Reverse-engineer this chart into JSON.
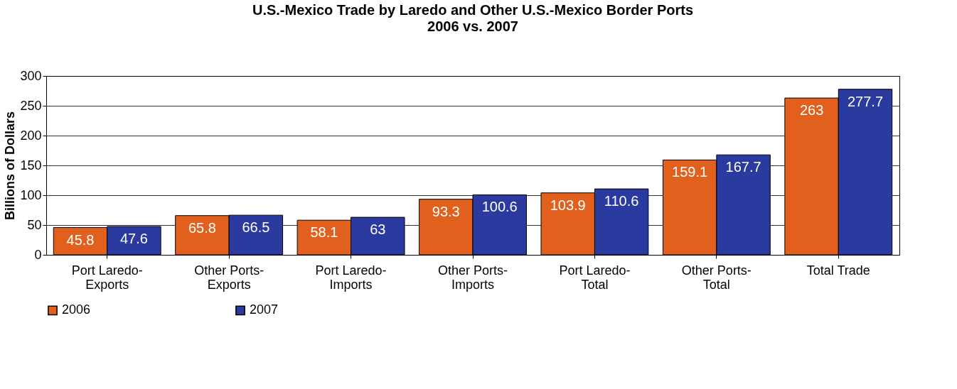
{
  "chart_data": {
    "type": "bar",
    "title": "U.S.-Mexico Trade by Laredo and Other U.S.-Mexico Border Ports",
    "subtitle": "2006 vs. 2007",
    "ylabel": "Billions of Dollars",
    "categories": [
      "Port Laredo-\nExports",
      "Other Ports-\nExports",
      "Port Laredo-\nImports",
      "Other Ports-\nImports",
      "Port Laredo-\nTotal",
      "Other Ports-\nTotal",
      "Total Trade"
    ],
    "series": [
      {
        "name": "2006",
        "color": "#e2601e",
        "values": [
          45.8,
          65.8,
          58.1,
          93.3,
          103.9,
          159.1,
          263
        ]
      },
      {
        "name": "2007",
        "color": "#2b3a9e",
        "values": [
          47.6,
          66.5,
          63,
          100.6,
          110.6,
          167.7,
          277.7
        ]
      }
    ],
    "ylim": [
      0,
      300
    ],
    "yticks": [
      0,
      50,
      100,
      150,
      200,
      250,
      300
    ],
    "grid": "y",
    "legend": "bottom",
    "data_labels": true
  }
}
